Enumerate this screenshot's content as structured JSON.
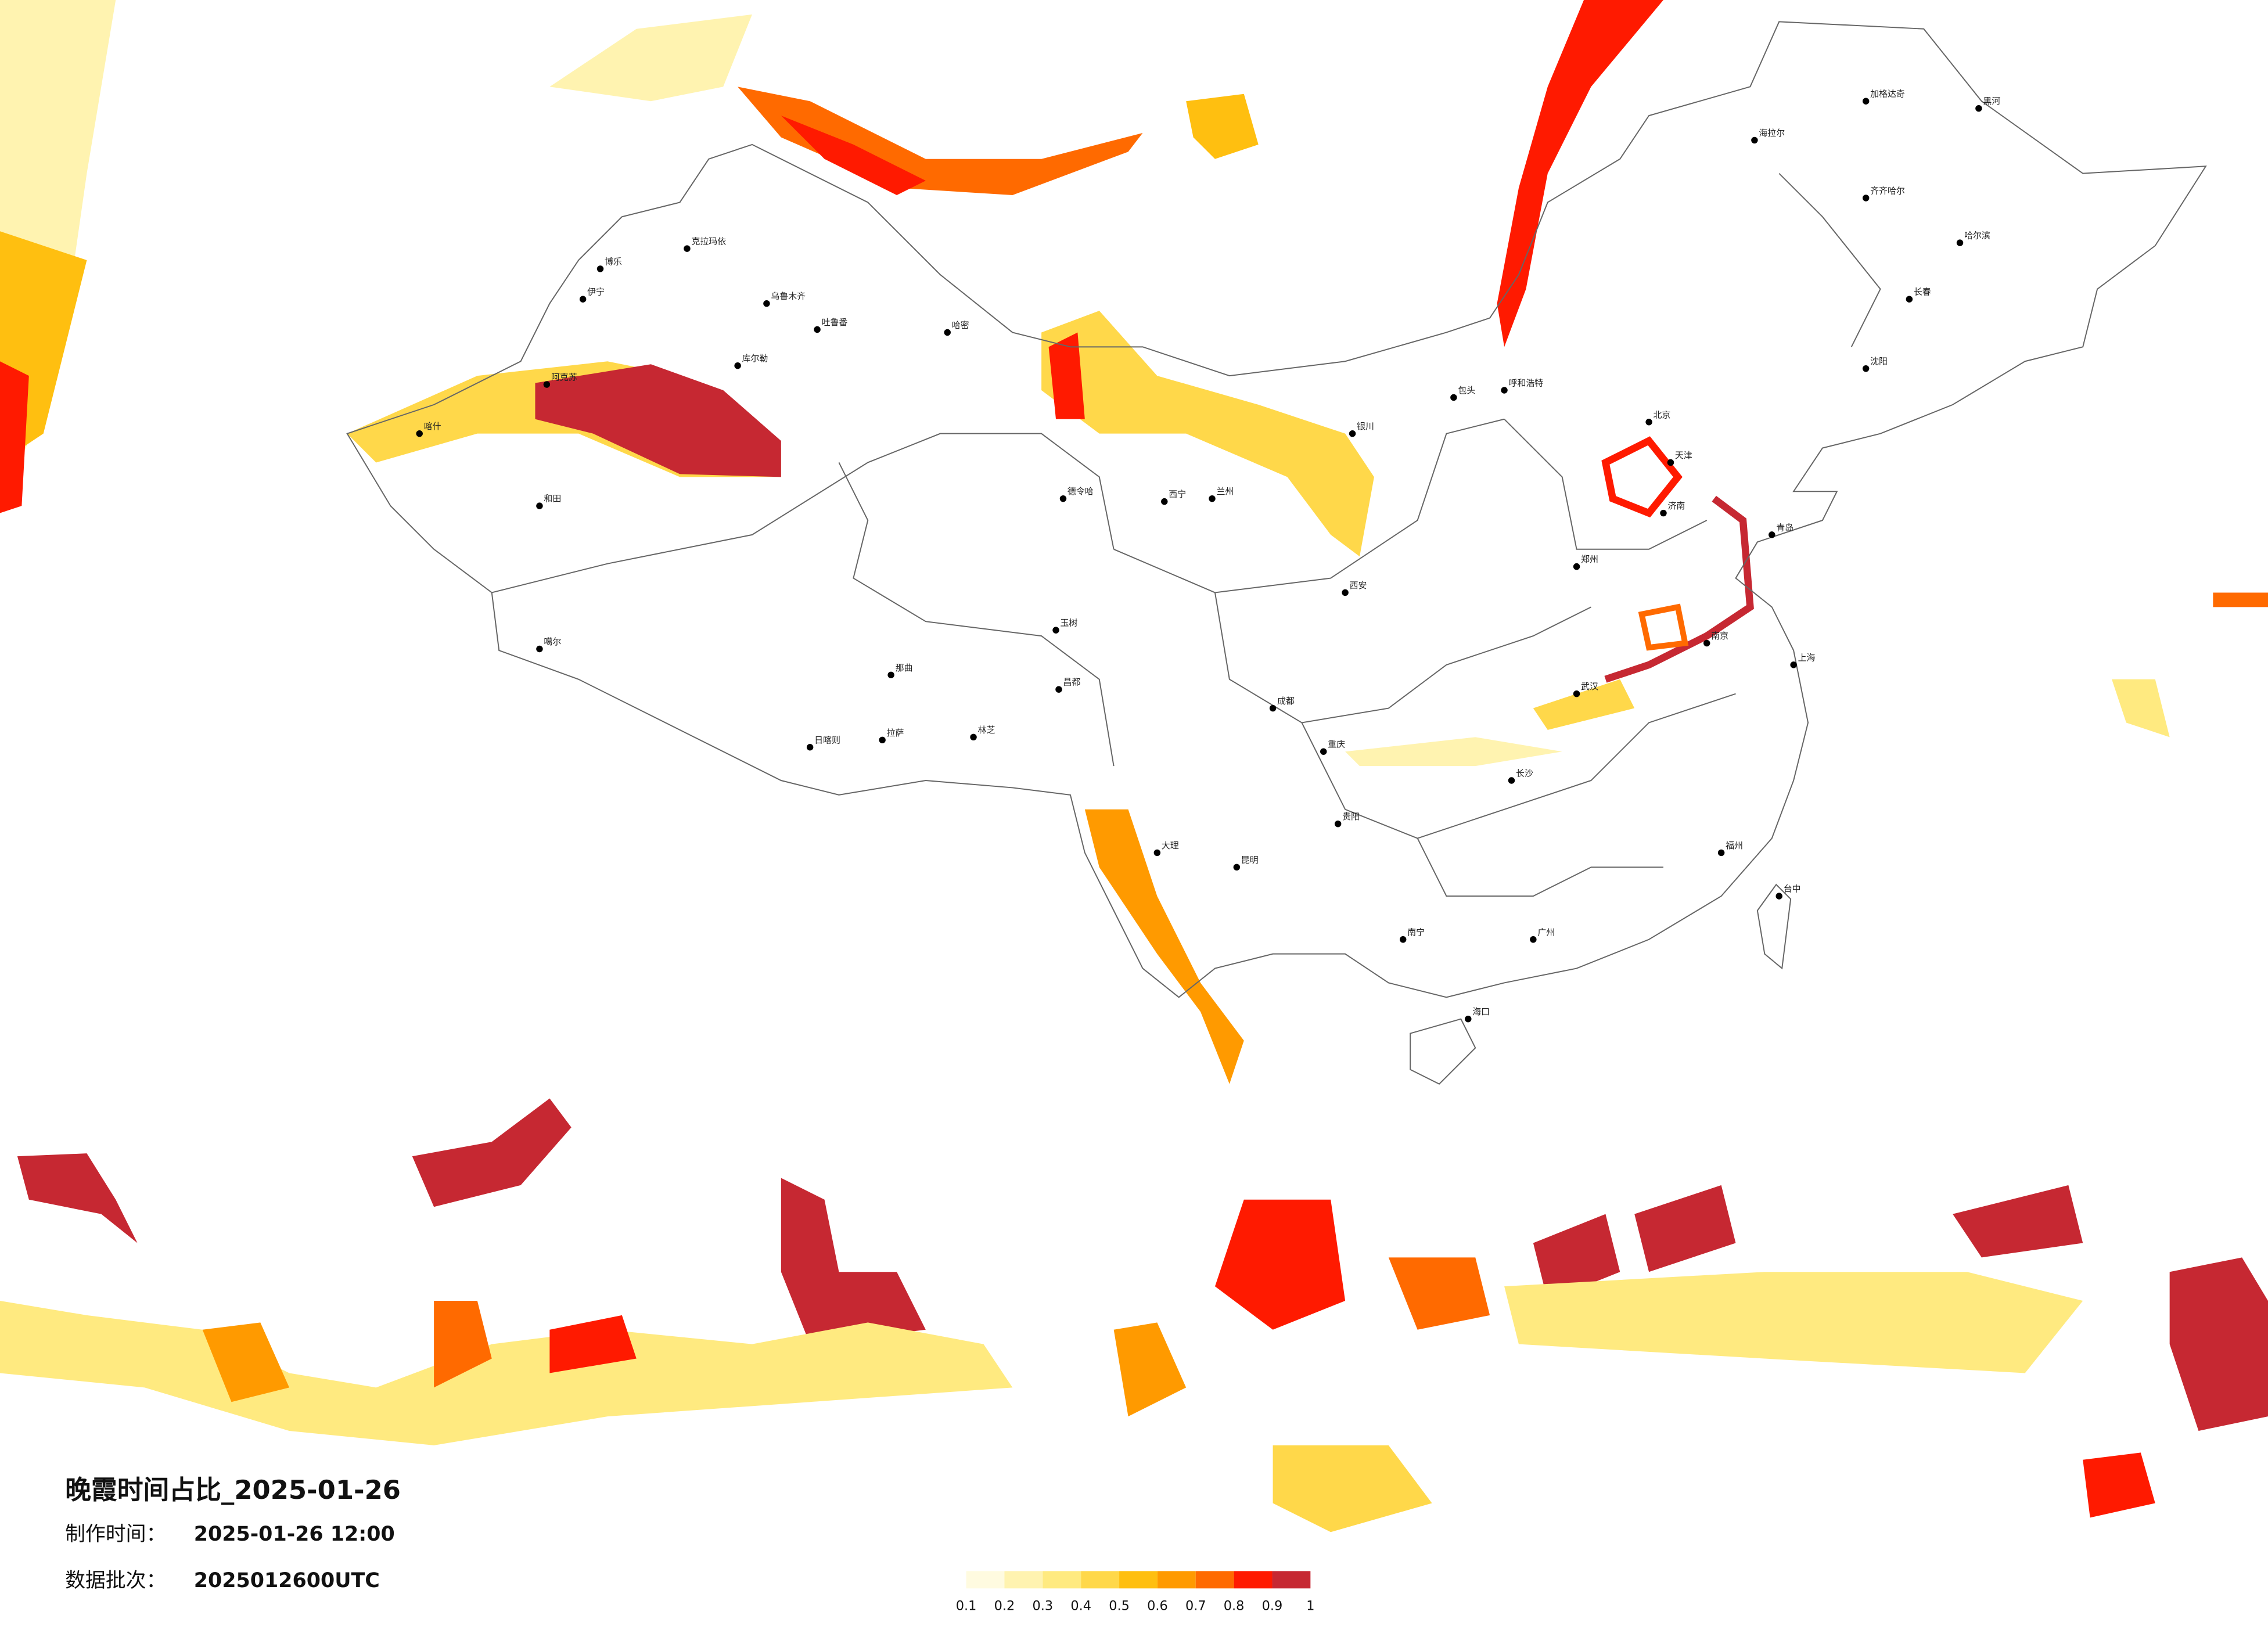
{
  "map": {
    "title": "晚霞时间占比_2025-01-26",
    "made_label": "制作时间：",
    "made_value": "2025-01-26 12:00",
    "batch_label": "数据批次：",
    "batch_value": "2025012600UTC",
    "legend": {
      "colors": [
        "#fffbe0",
        "#fff3b0",
        "#ffea80",
        "#ffd84a",
        "#ffbf10",
        "#ff9a00",
        "#ff6a00",
        "#ff1a00",
        "#c62832"
      ],
      "ticks": [
        0.1,
        0.2,
        0.3,
        0.4,
        0.5,
        0.6,
        0.7,
        0.8,
        0.9,
        1
      ]
    },
    "cities": [
      "克拉玛依",
      "乌鲁木齐",
      "吐鲁番",
      "哈密",
      "库尔勒",
      "阿克苏",
      "喀什",
      "和田",
      "伊宁",
      "博乐",
      "德令哈",
      "噶尔",
      "那曲",
      "日喀则",
      "拉萨",
      "林芝",
      "昌都",
      "玉树",
      "海拉尔",
      "加格达奇",
      "黑河",
      "齐齐哈尔",
      "哈尔滨",
      "长春",
      "沈阳",
      "北京",
      "天津",
      "呼和浩特",
      "包头",
      "银川",
      "兰州",
      "西宁",
      "西安",
      "郑州",
      "济南",
      "青岛",
      "上海",
      "南京",
      "武汉",
      "长沙",
      "成都",
      "重庆",
      "贵阳",
      "昆明",
      "南宁",
      "广州",
      "福州",
      "台中",
      "海口",
      "大理"
    ]
  }
}
